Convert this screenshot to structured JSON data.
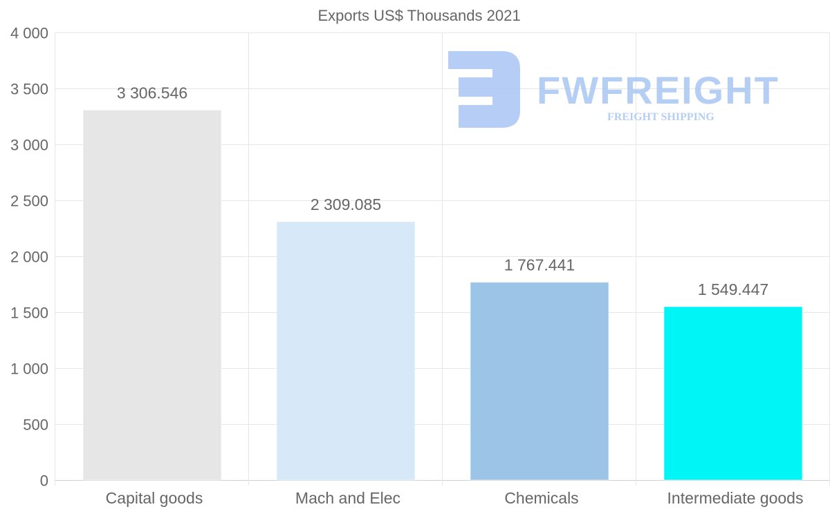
{
  "chart_data": {
    "type": "bar",
    "title": "Exports US$ Thousands 2021",
    "categories": [
      "Capital goods",
      "Mach and Elec",
      "Chemicals",
      "Intermediate goods"
    ],
    "values": [
      3306.546,
      2309.085,
      1767.441,
      1549.447
    ],
    "value_labels": [
      "3 306.546",
      "2 309.085",
      "1 767.441",
      "1 549.447"
    ],
    "colors": [
      "#e6e6e6",
      "#d7e8f8",
      "#9bc4e6",
      "#00f6f6"
    ],
    "ylim": [
      0,
      4000
    ],
    "yticks": [
      0,
      500,
      1000,
      1500,
      2000,
      2500,
      3000,
      3500,
      4000
    ],
    "ytick_labels": [
      "0",
      "500",
      "1 000",
      "1 500",
      "2 000",
      "2 500",
      "3 000",
      "3 500",
      "4 000"
    ],
    "xlabel": "",
    "ylabel": "",
    "grid": true,
    "legend": "none"
  },
  "watermark": {
    "brand": "FWFREIGHT",
    "tagline": "FREIGHT SHIPPING",
    "color": "#a9c6f3"
  }
}
